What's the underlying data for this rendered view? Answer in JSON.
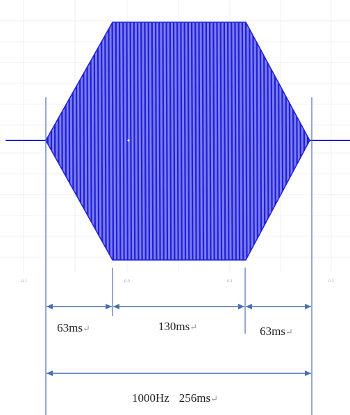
{
  "diagram": {
    "frequency_hz": 1000,
    "segments": [
      {
        "label": "63ms",
        "phase": "ramp-up"
      },
      {
        "label": "130ms",
        "phase": "plateau"
      },
      {
        "label": "63ms",
        "phase": "ramp-down"
      }
    ],
    "total_label_frequency": "1000Hz",
    "total_label_duration": "256ms",
    "enter_mark": "↵",
    "axis_ticks": [
      "-0.1",
      "0.0",
      "0.1",
      "0.2"
    ],
    "colors": {
      "waveform_fill": "#7b7cf0",
      "waveform_lines": "#1f1fd6",
      "dimension_lines": "#4a6fb0",
      "grid": "#e4e4e4",
      "text": "#222222"
    }
  }
}
